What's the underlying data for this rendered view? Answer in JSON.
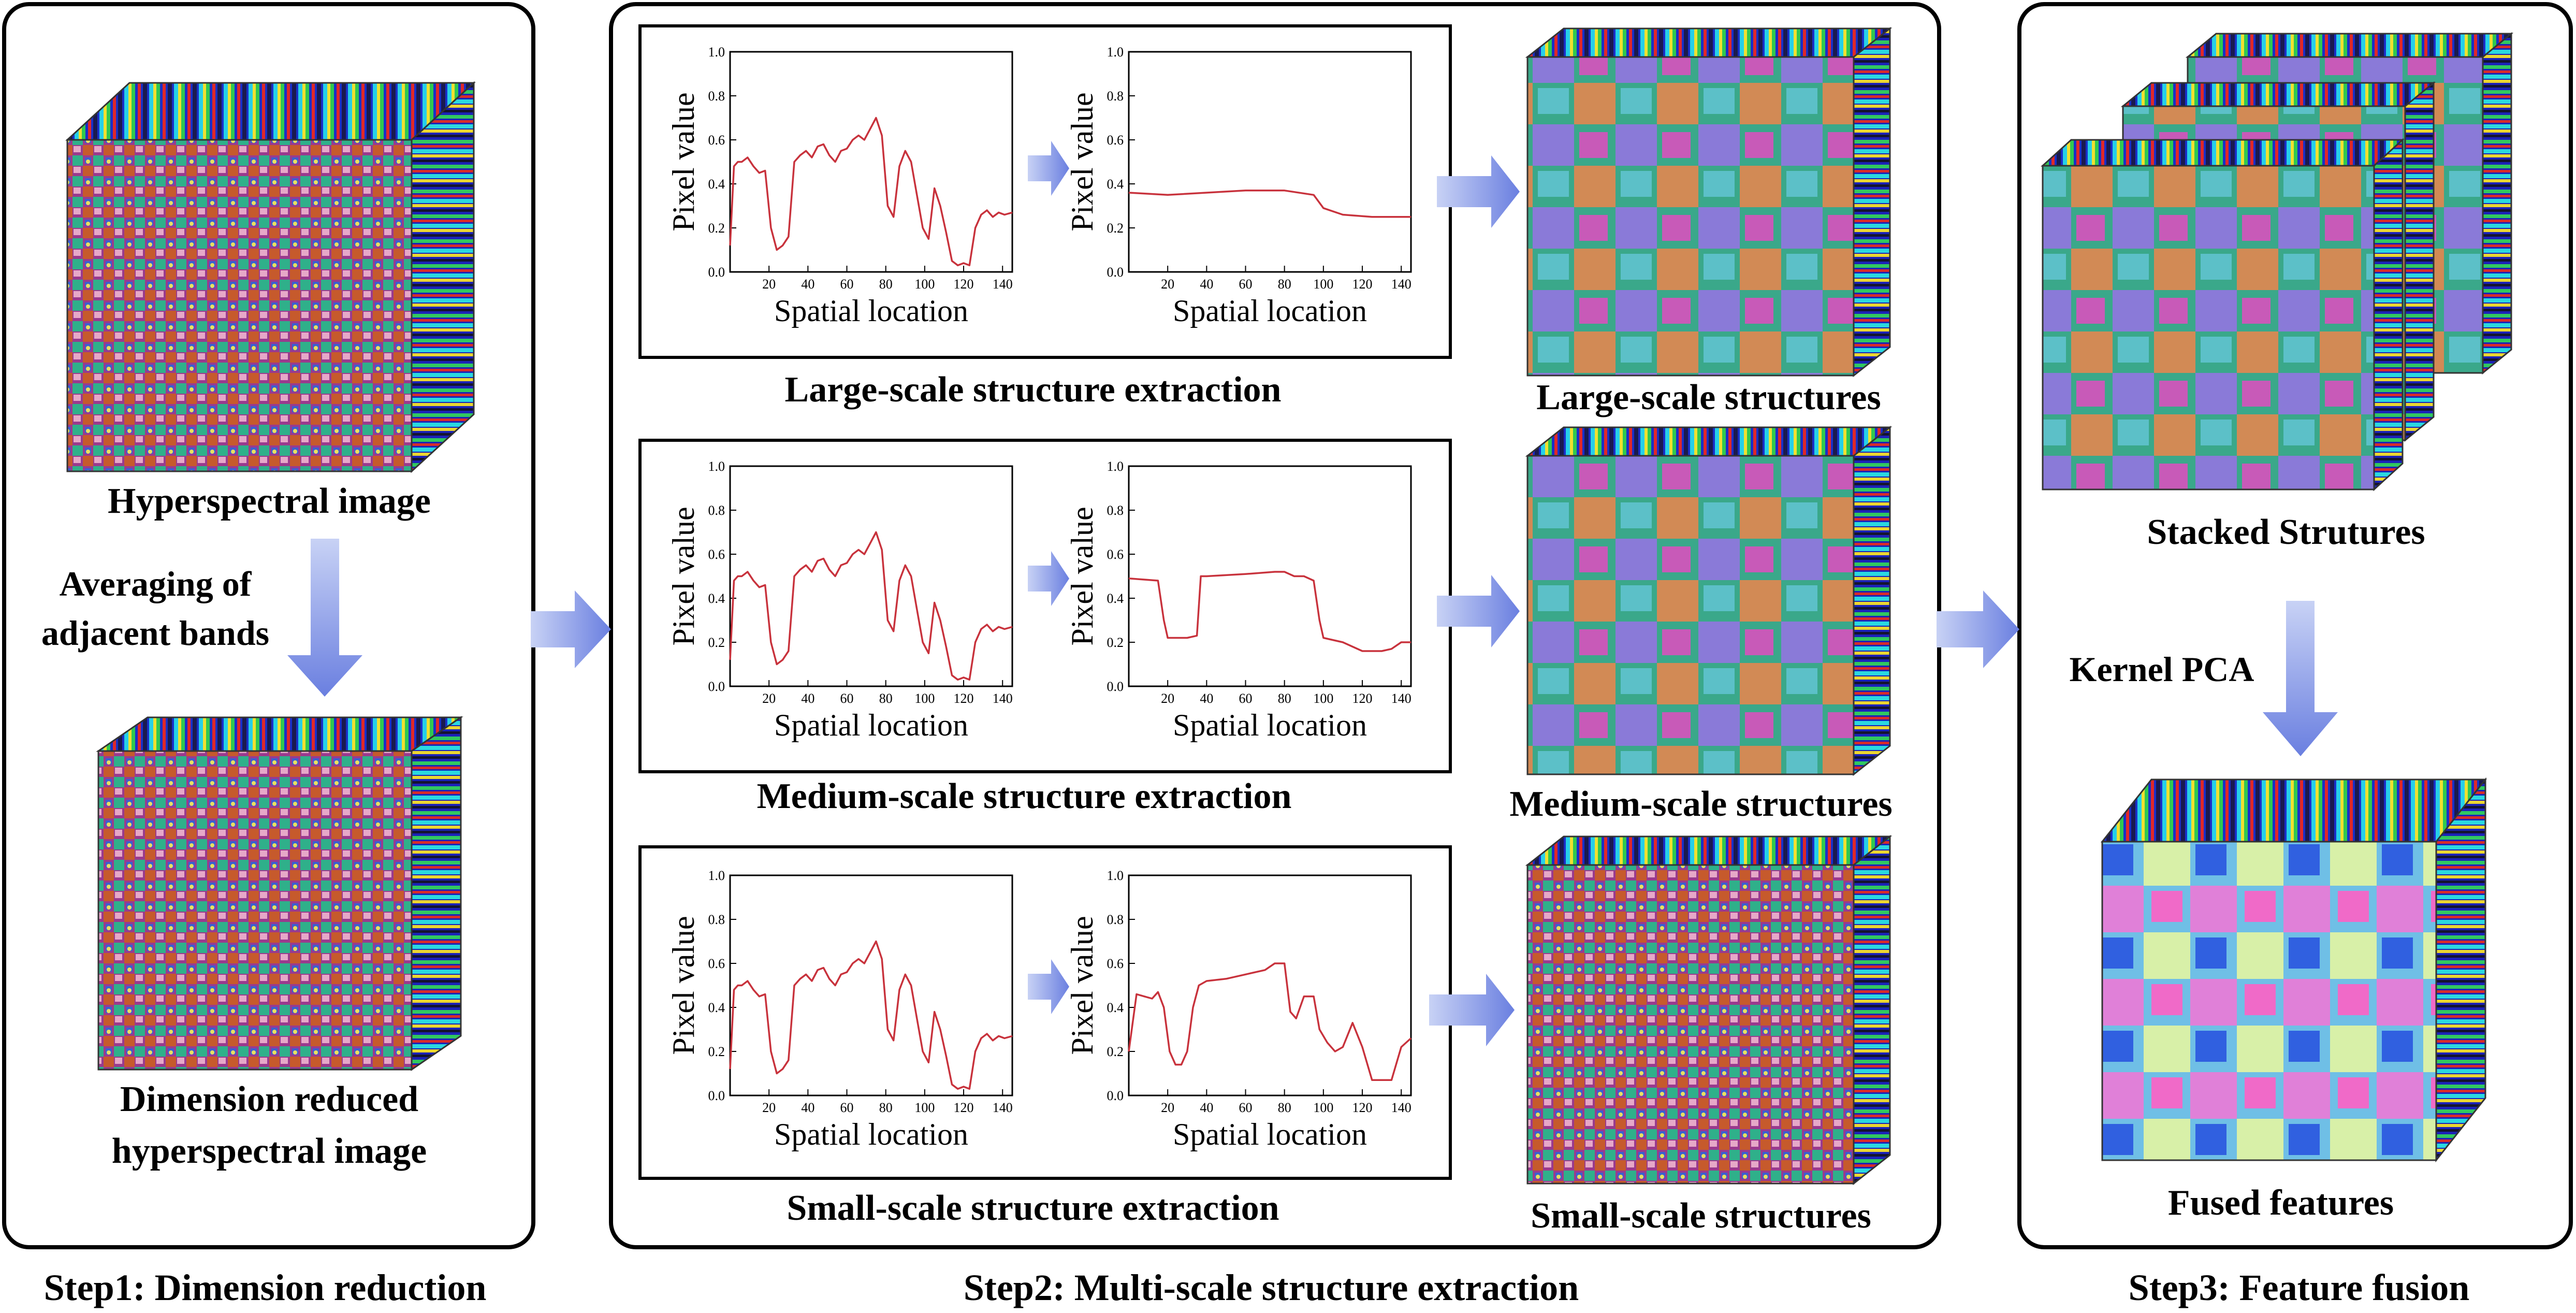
{
  "panels": {
    "step1": {
      "label": "Step1: Dimension reduction",
      "hsi_label": "Hyperspectral image",
      "op_line1": "Averaging of",
      "op_line2": "adjacent bands",
      "reduced_line1": "Dimension reduced",
      "reduced_line2": "hyperspectral image"
    },
    "step2": {
      "label": "Step2: Multi-scale structure extraction",
      "rows": [
        {
          "extraction_label": "Large-scale structure extraction",
          "result_label": "Large-scale structures"
        },
        {
          "extraction_label": "Medium-scale structure extraction",
          "result_label": "Medium-scale structures"
        },
        {
          "extraction_label": "Small-scale structure extraction",
          "result_label": "Small-scale structures"
        }
      ]
    },
    "step3": {
      "label": "Step3: Feature fusion",
      "stacked_label": "Stacked Strutures",
      "op_label": "Kernel PCA",
      "fused_label": "Fused features"
    }
  },
  "colors": {
    "curve": "#c8323c",
    "arrow_light": "#c8d2f5",
    "arrow_dark": "#6a7fe0"
  },
  "chart_data": [
    {
      "type": "line",
      "id": "large-original",
      "xlabel": "Spatial location",
      "ylabel": "Pixel value",
      "xlim": [
        0,
        145
      ],
      "ylim": [
        0,
        1
      ],
      "xticks": [
        "20",
        "40",
        "60",
        "80",
        "100",
        "120",
        "140"
      ],
      "yticks": [
        "0.0",
        "0.2",
        "0.4",
        "0.6",
        "0.8",
        "1.0"
      ],
      "x": [
        0,
        2,
        4,
        6,
        9,
        12,
        15,
        18,
        21,
        24,
        27,
        30,
        33,
        36,
        39,
        42,
        45,
        48,
        51,
        54,
        57,
        60,
        63,
        66,
        69,
        72,
        75,
        78,
        81,
        84,
        87,
        90,
        93,
        96,
        99,
        102,
        105,
        108,
        111,
        114,
        117,
        120,
        123,
        126,
        129,
        132,
        135,
        138,
        141,
        145
      ],
      "y": [
        0.12,
        0.48,
        0.5,
        0.5,
        0.52,
        0.48,
        0.45,
        0.46,
        0.2,
        0.1,
        0.12,
        0.16,
        0.5,
        0.53,
        0.55,
        0.52,
        0.57,
        0.58,
        0.53,
        0.5,
        0.55,
        0.56,
        0.6,
        0.62,
        0.6,
        0.65,
        0.7,
        0.62,
        0.3,
        0.25,
        0.48,
        0.55,
        0.5,
        0.35,
        0.2,
        0.15,
        0.38,
        0.3,
        0.18,
        0.05,
        0.03,
        0.04,
        0.03,
        0.2,
        0.26,
        0.28,
        0.25,
        0.27,
        0.26,
        0.27
      ]
    },
    {
      "type": "line",
      "id": "large-structure",
      "xlabel": "Spatial location",
      "ylabel": "Pixel value",
      "xlim": [
        0,
        145
      ],
      "ylim": [
        0,
        1
      ],
      "xticks": [
        "20",
        "40",
        "60",
        "80",
        "100",
        "120",
        "140"
      ],
      "yticks": [
        "0.0",
        "0.2",
        "0.4",
        "0.6",
        "0.8",
        "1.0"
      ],
      "x": [
        0,
        20,
        40,
        60,
        80,
        95,
        100,
        110,
        125,
        140,
        145
      ],
      "y": [
        0.36,
        0.35,
        0.36,
        0.37,
        0.37,
        0.35,
        0.29,
        0.26,
        0.25,
        0.25,
        0.25
      ]
    },
    {
      "type": "line",
      "id": "medium-original",
      "xlabel": "Spatial location",
      "ylabel": "Pixel value",
      "xlim": [
        0,
        145
      ],
      "ylim": [
        0,
        1
      ],
      "xticks": [
        "20",
        "40",
        "60",
        "80",
        "100",
        "120",
        "140"
      ],
      "yticks": [
        "0.0",
        "0.2",
        "0.4",
        "0.6",
        "0.8",
        "1.0"
      ],
      "x": [
        0,
        2,
        4,
        6,
        9,
        12,
        15,
        18,
        21,
        24,
        27,
        30,
        33,
        36,
        39,
        42,
        45,
        48,
        51,
        54,
        57,
        60,
        63,
        66,
        69,
        72,
        75,
        78,
        81,
        84,
        87,
        90,
        93,
        96,
        99,
        102,
        105,
        108,
        111,
        114,
        117,
        120,
        123,
        126,
        129,
        132,
        135,
        138,
        141,
        145
      ],
      "y": [
        0.12,
        0.48,
        0.5,
        0.5,
        0.52,
        0.48,
        0.45,
        0.46,
        0.2,
        0.1,
        0.12,
        0.16,
        0.5,
        0.53,
        0.55,
        0.52,
        0.57,
        0.58,
        0.53,
        0.5,
        0.55,
        0.56,
        0.6,
        0.62,
        0.6,
        0.65,
        0.7,
        0.62,
        0.3,
        0.25,
        0.48,
        0.55,
        0.5,
        0.35,
        0.2,
        0.15,
        0.38,
        0.3,
        0.18,
        0.05,
        0.03,
        0.04,
        0.03,
        0.2,
        0.26,
        0.28,
        0.25,
        0.27,
        0.26,
        0.27
      ]
    },
    {
      "type": "line",
      "id": "medium-structure",
      "xlabel": "Spatial location",
      "ylabel": "Pixel value",
      "xlim": [
        0,
        145
      ],
      "ylim": [
        0,
        1
      ],
      "xticks": [
        "20",
        "40",
        "60",
        "80",
        "100",
        "120",
        "140"
      ],
      "yticks": [
        "0.0",
        "0.2",
        "0.4",
        "0.6",
        "0.8",
        "1.0"
      ],
      "x": [
        0,
        15,
        18,
        20,
        30,
        35,
        37,
        40,
        60,
        75,
        80,
        85,
        90,
        95,
        98,
        100,
        110,
        120,
        130,
        135,
        140,
        145
      ],
      "y": [
        0.49,
        0.48,
        0.3,
        0.22,
        0.22,
        0.23,
        0.5,
        0.5,
        0.51,
        0.52,
        0.52,
        0.5,
        0.5,
        0.48,
        0.3,
        0.22,
        0.2,
        0.16,
        0.16,
        0.17,
        0.2,
        0.2
      ]
    },
    {
      "type": "line",
      "id": "small-original",
      "xlabel": "Spatial location",
      "ylabel": "Pixel value",
      "xlim": [
        0,
        145
      ],
      "ylim": [
        0,
        1
      ],
      "xticks": [
        "20",
        "40",
        "60",
        "80",
        "100",
        "120",
        "140"
      ],
      "yticks": [
        "0.0",
        "0.2",
        "0.4",
        "0.6",
        "0.8",
        "1.0"
      ],
      "x": [
        0,
        2,
        4,
        6,
        9,
        12,
        15,
        18,
        21,
        24,
        27,
        30,
        33,
        36,
        39,
        42,
        45,
        48,
        51,
        54,
        57,
        60,
        63,
        66,
        69,
        72,
        75,
        78,
        81,
        84,
        87,
        90,
        93,
        96,
        99,
        102,
        105,
        108,
        111,
        114,
        117,
        120,
        123,
        126,
        129,
        132,
        135,
        138,
        141,
        145
      ],
      "y": [
        0.12,
        0.48,
        0.5,
        0.5,
        0.52,
        0.48,
        0.45,
        0.46,
        0.2,
        0.1,
        0.12,
        0.16,
        0.5,
        0.53,
        0.55,
        0.52,
        0.57,
        0.58,
        0.53,
        0.5,
        0.55,
        0.56,
        0.6,
        0.62,
        0.6,
        0.65,
        0.7,
        0.62,
        0.3,
        0.25,
        0.48,
        0.55,
        0.5,
        0.35,
        0.2,
        0.15,
        0.38,
        0.3,
        0.18,
        0.05,
        0.03,
        0.04,
        0.03,
        0.2,
        0.26,
        0.28,
        0.25,
        0.27,
        0.26,
        0.27
      ]
    },
    {
      "type": "line",
      "id": "small-structure",
      "xlabel": "Spatial location",
      "ylabel": "Pixel value",
      "xlim": [
        0,
        145
      ],
      "ylim": [
        0,
        1
      ],
      "xticks": [
        "20",
        "40",
        "60",
        "80",
        "100",
        "120",
        "140"
      ],
      "yticks": [
        "0.0",
        "0.2",
        "0.4",
        "0.6",
        "0.8",
        "1.0"
      ],
      "x": [
        0,
        4,
        8,
        12,
        15,
        18,
        21,
        24,
        27,
        30,
        33,
        36,
        40,
        50,
        60,
        70,
        75,
        80,
        83,
        86,
        90,
        95,
        98,
        102,
        106,
        110,
        115,
        120,
        125,
        130,
        135,
        140,
        145
      ],
      "y": [
        0.2,
        0.46,
        0.45,
        0.44,
        0.47,
        0.4,
        0.2,
        0.14,
        0.14,
        0.2,
        0.4,
        0.5,
        0.52,
        0.53,
        0.55,
        0.57,
        0.6,
        0.6,
        0.38,
        0.35,
        0.45,
        0.45,
        0.3,
        0.24,
        0.2,
        0.22,
        0.33,
        0.22,
        0.07,
        0.07,
        0.07,
        0.22,
        0.26
      ]
    }
  ]
}
